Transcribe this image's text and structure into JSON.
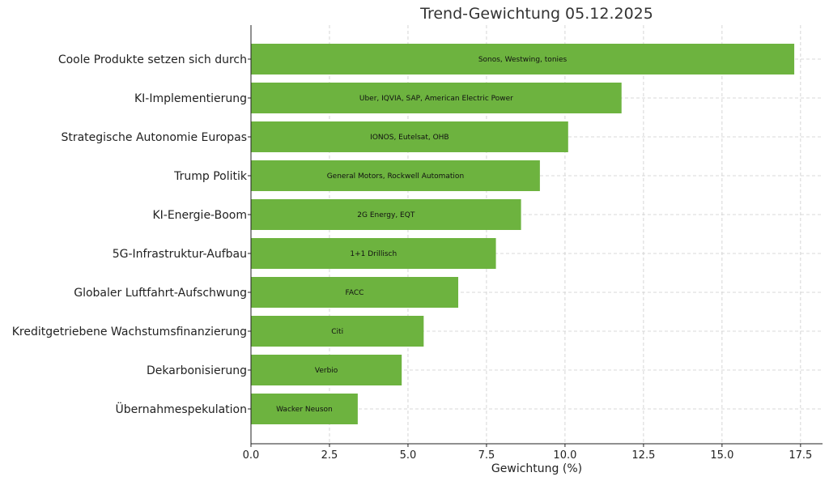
{
  "chart_data": {
    "type": "bar",
    "orientation": "horizontal",
    "title": "Trend-Gewichtung 05.12.2025",
    "xlabel": "Gewichtung (%)",
    "ylabel": "",
    "xlim": [
      0,
      18.2
    ],
    "xticks": [
      0,
      2.5,
      5,
      7.5,
      10,
      12.5,
      15,
      17.5
    ],
    "xtick_labels": [
      "0.0",
      "2.5",
      "5.0",
      "7.5",
      "10.0",
      "12.5",
      "15.0",
      "17.5"
    ],
    "grid": true,
    "bar_color": "#6db33f",
    "categories": [
      "Coole Produkte setzen sich durch",
      "KI-Implementierung",
      "Strategische Autonomie Europas",
      "Trump Politik",
      "KI-Energie-Boom",
      "5G-Infrastruktur-Aufbau",
      "Globaler Luftfahrt-Aufschwung",
      "Kreditgetriebene Wachstumsfinanzierung",
      "Dekarbonisierung",
      "Übernahmespekulation"
    ],
    "values": [
      17.3,
      11.8,
      10.1,
      9.2,
      8.6,
      7.8,
      6.6,
      5.5,
      4.8,
      3.4
    ],
    "bar_labels": [
      "Sonos, Westwing, tonies",
      "Uber, IQVIA, SAP, American Electric Power",
      "IONOS, Eutelsat, OHB",
      "General Motors, Rockwell Automation",
      "2G Energy, EQT",
      "1+1 Drillisch",
      "FACC",
      "Citi",
      "Verbio",
      "Wacker Neuson"
    ]
  }
}
